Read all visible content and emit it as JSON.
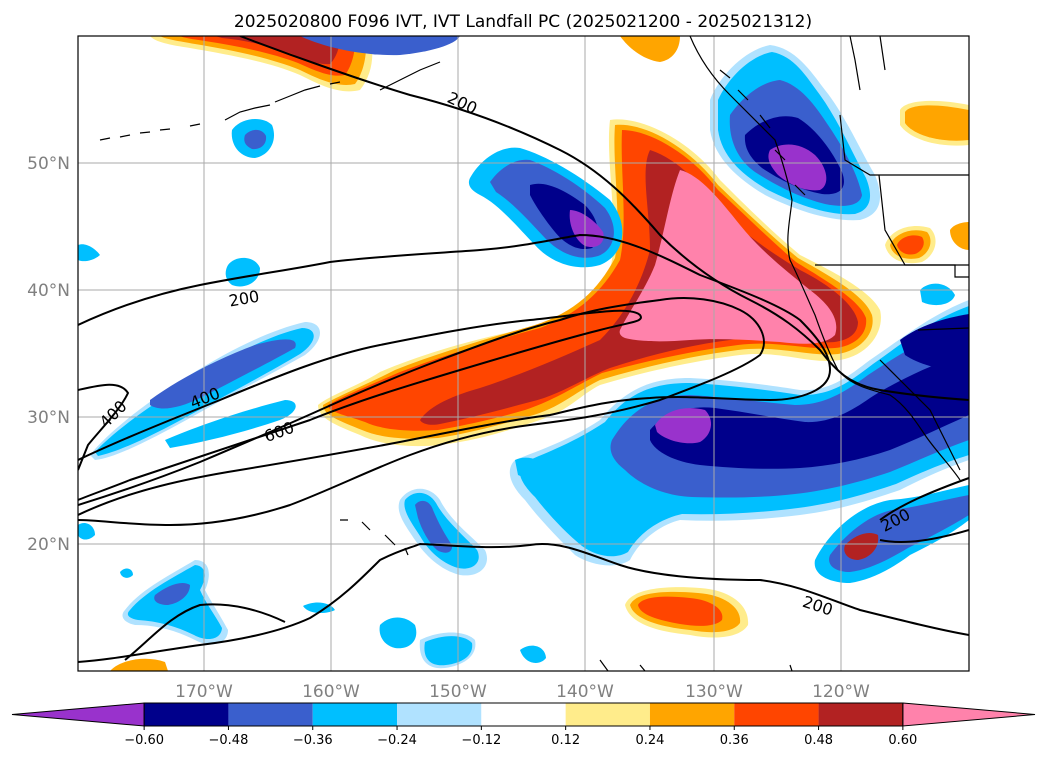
{
  "title": "2025020800 F096 IVT, IVT Landfall PC (2025021200 - 2025021312)",
  "lat_ticks": [
    "20°N",
    "30°N",
    "40°N",
    "50°N"
  ],
  "lon_ticks": [
    "170°W",
    "160°W",
    "150°W",
    "140°W",
    "130°W",
    "120°W"
  ],
  "contour_labels": [
    "200",
    "200",
    "200",
    "200",
    "400",
    "400",
    "600"
  ],
  "colorbar": {
    "colors": [
      "#9932CC",
      "#00008B",
      "#3A5FCD",
      "#00BFFF",
      "#B0E2FF",
      "#FFFFFF",
      "#FFEC8B",
      "#FFA500",
      "#FF4500",
      "#B22222",
      "#FF82AB"
    ],
    "tick_labels": [
      "−0.60",
      "−0.48",
      "−0.36",
      "−0.24",
      "−0.12",
      "0.12",
      "0.24",
      "0.36",
      "0.48",
      "0.60"
    ]
  }
}
